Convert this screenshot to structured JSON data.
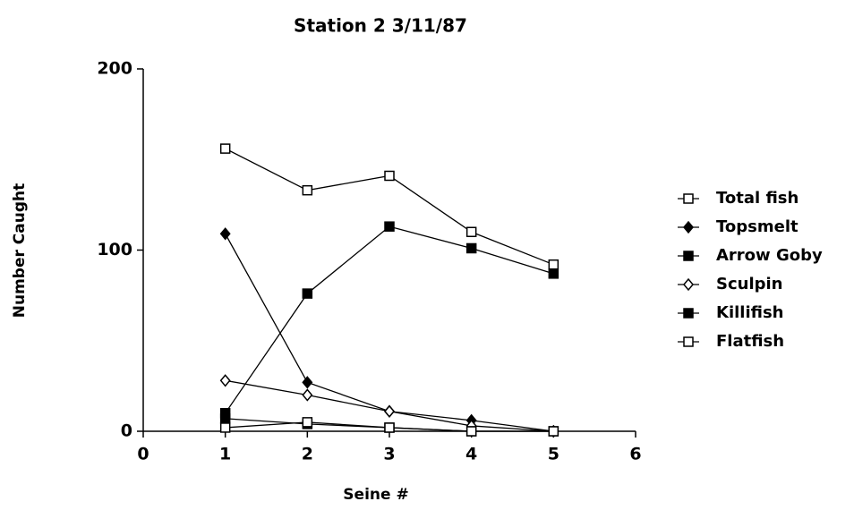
{
  "chart_data": {
    "type": "line",
    "title": "Station 2  3/11/87",
    "x_label": "Seine #",
    "y_label": "Number Caught",
    "x": [
      1,
      2,
      3,
      4,
      5
    ],
    "series": [
      {
        "name": "Total fish",
        "color": "#000000",
        "marker": "open-square",
        "values": [
          156,
          133,
          141,
          110,
          92
        ]
      },
      {
        "name": "Topsmelt",
        "color": "#000000",
        "marker": "filled-diamond",
        "values": [
          109,
          27,
          11,
          6,
          0
        ]
      },
      {
        "name": "Arrow Goby",
        "color": "#000000",
        "marker": "filled-square",
        "values": [
          10,
          76,
          113,
          101,
          87
        ]
      },
      {
        "name": "Sculpin",
        "color": "#000000",
        "marker": "open-diamond",
        "values": [
          28,
          20,
          11,
          3,
          0
        ]
      },
      {
        "name": "Killifish",
        "color": "#000000",
        "marker": "filled-square",
        "values": [
          7,
          4,
          2,
          0,
          0
        ]
      },
      {
        "name": "Flatfish",
        "color": "#000000",
        "marker": "open-square",
        "values": [
          2,
          5,
          2,
          0,
          0
        ]
      }
    ],
    "xlim": [
      0,
      6
    ],
    "xticks": [
      0,
      1,
      2,
      3,
      4,
      5,
      6
    ],
    "ylim": [
      0,
      200
    ],
    "yticks": [
      0,
      100,
      200
    ],
    "grid": false,
    "legend": "right"
  }
}
